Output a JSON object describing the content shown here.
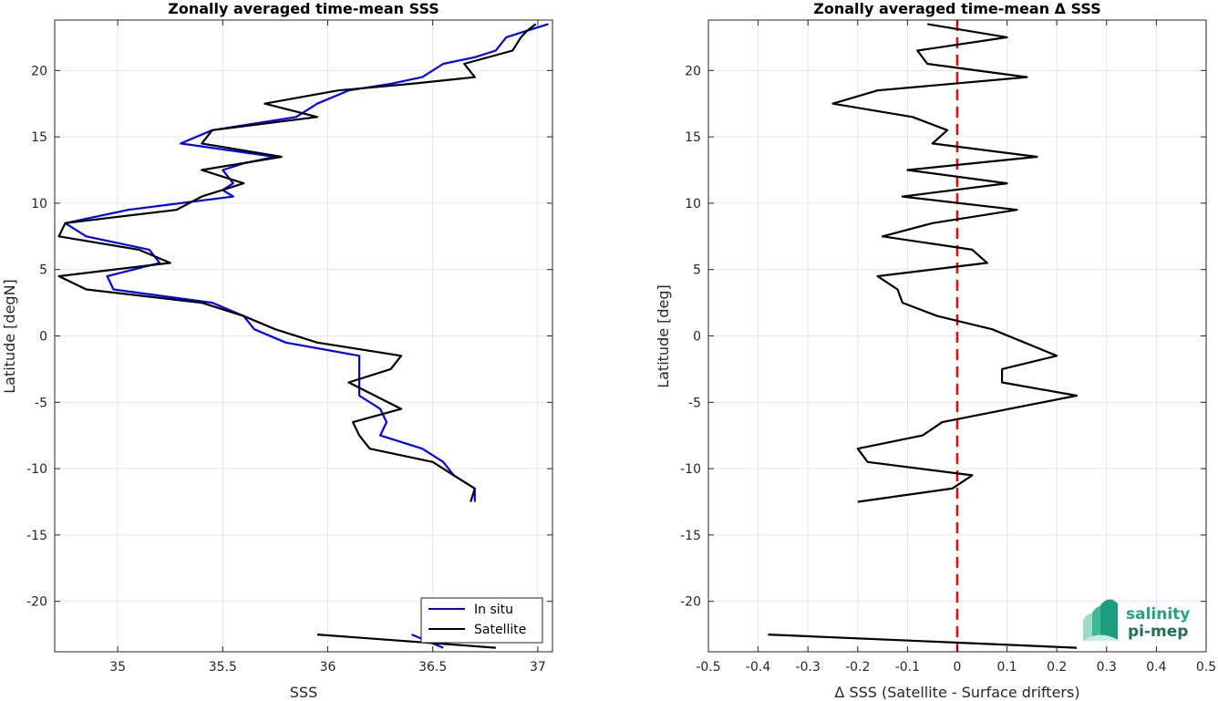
{
  "chart_data": [
    {
      "type": "line",
      "title": "Zonally averaged time-mean SSS",
      "xlabel": "SSS",
      "ylabel": "Latitude [degN]",
      "xlim": [
        34.7,
        37.07
      ],
      "ylim": [
        -23.8,
        23.8
      ],
      "xticks": [
        "35",
        "35.5",
        "36",
        "36.5",
        "37"
      ],
      "yticks": [
        "-20",
        "-15",
        "-10",
        "-5",
        "0",
        "5",
        "10",
        "15",
        "20"
      ],
      "grid": true,
      "legend": {
        "position": "bottom-right",
        "entries": [
          "In situ",
          "Satellite"
        ]
      },
      "series": [
        {
          "name": "In situ",
          "color": "#0000ff",
          "segments": [
            [
              [
                37.05,
                23.5
              ],
              [
                36.95,
                23
              ],
              [
                36.85,
                22.5
              ],
              [
                36.8,
                21.5
              ],
              [
                36.7,
                21
              ],
              [
                36.55,
                20.5
              ],
              [
                36.45,
                19.5
              ],
              [
                36.3,
                19
              ],
              [
                36.1,
                18.5
              ],
              [
                35.95,
                17.5
              ],
              [
                35.85,
                16.5
              ],
              [
                35.65,
                16
              ],
              [
                35.45,
                15.5
              ],
              [
                35.3,
                14.5
              ],
              [
                35.75,
                13.5
              ],
              [
                35.6,
                13
              ],
              [
                35.5,
                12.5
              ],
              [
                35.55,
                11.5
              ],
              [
                35.5,
                11
              ],
              [
                35.55,
                10.5
              ],
              [
                35.3,
                10
              ],
              [
                35.05,
                9.5
              ],
              [
                34.75,
                8.5
              ],
              [
                34.85,
                7.5
              ],
              [
                35.15,
                6.5
              ],
              [
                35.2,
                5.5
              ],
              [
                34.95,
                4.5
              ],
              [
                34.98,
                3.5
              ],
              [
                35.45,
                2.5
              ],
              [
                35.6,
                1.5
              ],
              [
                35.65,
                0.5
              ],
              [
                35.8,
                -0.5
              ],
              [
                36.15,
                -1.5
              ],
              [
                36.15,
                -3.5
              ],
              [
                36.15,
                -4.5
              ],
              [
                36.25,
                -5.5
              ],
              [
                36.28,
                -6.5
              ],
              [
                36.25,
                -7.5
              ],
              [
                36.45,
                -8.5
              ],
              [
                36.55,
                -9.5
              ],
              [
                36.6,
                -10.5
              ],
              [
                36.7,
                -11.5
              ],
              [
                36.7,
                -12.5
              ]
            ],
            [
              [
                36.4,
                -22.5
              ],
              [
                36.55,
                -23.5
              ]
            ]
          ]
        },
        {
          "name": "Satellite",
          "color": "#000000",
          "segments": [
            [
              [
                36.99,
                23.5
              ],
              [
                36.95,
                23
              ],
              [
                36.92,
                22.5
              ],
              [
                36.88,
                21.5
              ],
              [
                36.65,
                20.5
              ],
              [
                36.7,
                19.5
              ],
              [
                36.4,
                19
              ],
              [
                36.05,
                18.5
              ],
              [
                35.7,
                17.5
              ],
              [
                35.95,
                16.5
              ],
              [
                35.45,
                15.5
              ],
              [
                35.4,
                14.5
              ],
              [
                35.78,
                13.5
              ],
              [
                35.4,
                12.5
              ],
              [
                35.6,
                11.5
              ],
              [
                35.4,
                10.5
              ],
              [
                35.28,
                9.5
              ],
              [
                34.75,
                8.5
              ],
              [
                34.72,
                7.5
              ],
              [
                35.1,
                6.5
              ],
              [
                35.25,
                5.5
              ],
              [
                34.72,
                4.5
              ],
              [
                34.85,
                3.5
              ],
              [
                35.4,
                2.5
              ],
              [
                35.6,
                1.5
              ],
              [
                35.75,
                0.5
              ],
              [
                35.95,
                -0.5
              ],
              [
                36.35,
                -1.5
              ],
              [
                36.3,
                -2.5
              ],
              [
                36.1,
                -3.5
              ],
              [
                36.35,
                -5.5
              ],
              [
                36.12,
                -6.5
              ],
              [
                36.15,
                -7.5
              ],
              [
                36.2,
                -8.5
              ],
              [
                36.5,
                -9.5
              ],
              [
                36.6,
                -10.5
              ],
              [
                36.7,
                -11.5
              ],
              [
                36.68,
                -12.5
              ]
            ],
            [
              [
                35.95,
                -22.5
              ],
              [
                36.8,
                -23.5
              ]
            ]
          ]
        }
      ]
    },
    {
      "type": "line",
      "title": "Zonally averaged time-mean Δ SSS",
      "xlabel": "Δ SSS (Satellite - Surface drifters)",
      "ylabel": "Latitude [deg]",
      "xlim": [
        -0.5,
        0.5
      ],
      "ylim": [
        -23.8,
        23.8
      ],
      "xticks": [
        "-0.5",
        "-0.4",
        "-0.3",
        "-0.2",
        "-0.1",
        "0",
        "0.1",
        "0.2",
        "0.3",
        "0.4",
        "0.5"
      ],
      "yticks": [
        "-20",
        "-15",
        "-10",
        "-5",
        "0",
        "5",
        "10",
        "15",
        "20"
      ],
      "grid": true,
      "reference_line": {
        "x": 0,
        "color": "#ff0000",
        "style": "dashed"
      },
      "series": [
        {
          "color": "#000000",
          "segments": [
            [
              [
                -0.06,
                23.5
              ],
              [
                0.1,
                22.5
              ],
              [
                -0.08,
                21.5
              ],
              [
                -0.06,
                20.5
              ],
              [
                0.14,
                19.5
              ],
              [
                -0.16,
                18.5
              ],
              [
                -0.25,
                17.5
              ],
              [
                -0.09,
                16.5
              ],
              [
                -0.02,
                15.5
              ],
              [
                -0.05,
                14.5
              ],
              [
                0.16,
                13.5
              ],
              [
                -0.1,
                12.5
              ],
              [
                0.1,
                11.5
              ],
              [
                -0.11,
                10.5
              ],
              [
                0.12,
                9.5
              ],
              [
                -0.05,
                8.5
              ],
              [
                -0.15,
                7.5
              ],
              [
                0.03,
                6.5
              ],
              [
                0.06,
                5.5
              ],
              [
                -0.16,
                4.5
              ],
              [
                -0.12,
                3.5
              ],
              [
                -0.11,
                2.5
              ],
              [
                -0.04,
                1.5
              ],
              [
                0.07,
                0.5
              ],
              [
                0.2,
                -1.5
              ],
              [
                0.09,
                -2.5
              ],
              [
                0.09,
                -3.5
              ],
              [
                0.24,
                -4.5
              ],
              [
                -0.03,
                -6.5
              ],
              [
                -0.07,
                -7.5
              ],
              [
                -0.2,
                -8.5
              ],
              [
                -0.18,
                -9.5
              ],
              [
                0.03,
                -10.5
              ],
              [
                -0.01,
                -11.5
              ],
              [
                -0.2,
                -12.5
              ]
            ],
            [
              [
                -0.38,
                -22.5
              ],
              [
                0.24,
                -23.5
              ]
            ]
          ]
        }
      ]
    }
  ],
  "logo": {
    "line1": "salinity",
    "line2": "pi-mep"
  }
}
